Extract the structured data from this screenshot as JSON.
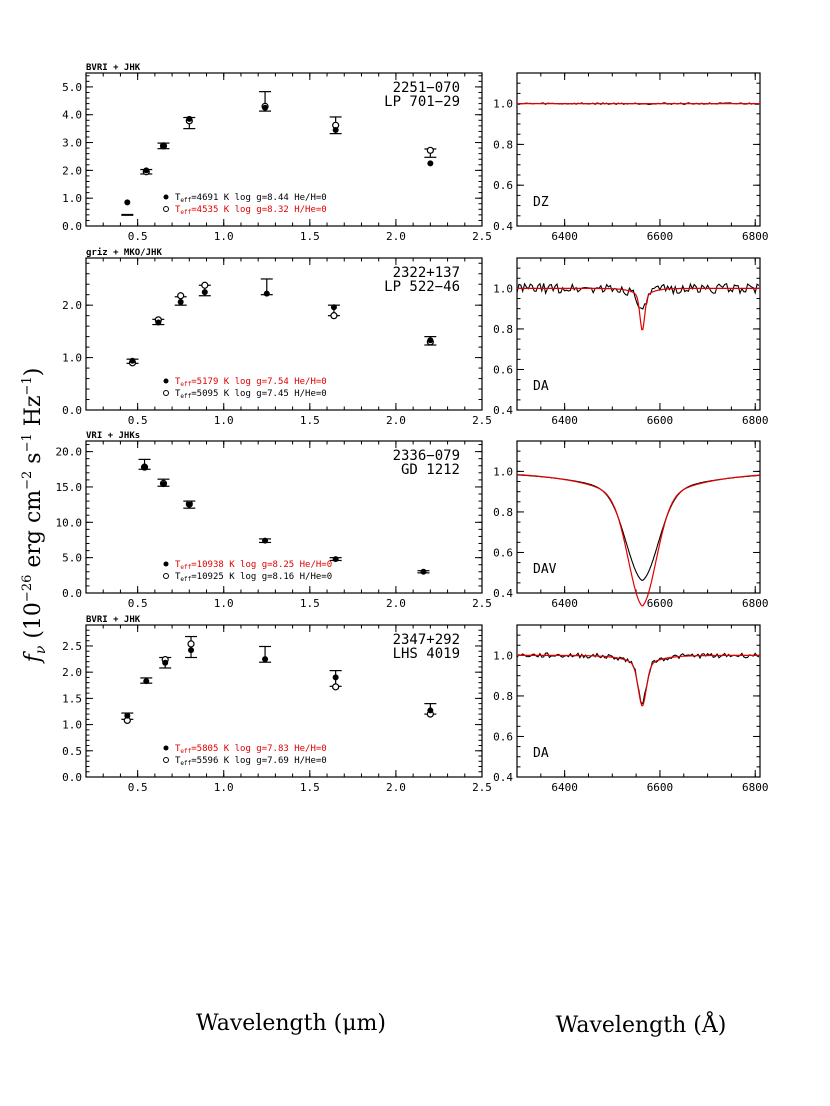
{
  "figure": {
    "ylabel_html": [
      "f",
      "ν",
      " (10",
      "−26",
      " erg cm",
      "−2",
      " s",
      "−1",
      " Hz",
      "−1",
      ")"
    ],
    "ylabel": "f_ν (10^-26 erg cm^-2 s^-1 Hz^-1)",
    "xlabel_left": "Wavelength (μm)",
    "xlabel_right": "Wavelength (Å)",
    "colors": {
      "model_black": "#000000",
      "model_red": "#e00000",
      "spectrum": "#000000"
    }
  },
  "chart_data": [
    {
      "type": "scatter",
      "panel": "sed",
      "header": "BVRI + JHK",
      "star": [
        "2251−070",
        "LP 701−29"
      ],
      "xlim": [
        0.2,
        2.5
      ],
      "ylim": [
        0,
        5.5
      ],
      "xticks": [
        0.5,
        1.0,
        1.5,
        2.0,
        2.5
      ],
      "xtick_labels": [
        "0.5",
        "1.0",
        "1.5",
        "2.0",
        "2.5"
      ],
      "yticks": [
        0,
        1,
        2,
        3,
        4,
        5
      ],
      "ytick_labels": [
        "0.0",
        "1.0",
        "2.0",
        "3.0",
        "4.0",
        "5.0"
      ],
      "observed": [
        {
          "x": 0.44,
          "y": 0.4,
          "err": 0.0
        },
        {
          "x": 0.55,
          "y": 1.95,
          "err": 0.08
        },
        {
          "x": 0.65,
          "y": 2.88,
          "err": 0.1
        },
        {
          "x": 0.8,
          "y": 3.7,
          "err": 0.2
        },
        {
          "x": 1.24,
          "y": 4.48,
          "err": 0.35
        },
        {
          "x": 1.65,
          "y": 3.62,
          "err": 0.3
        },
        {
          "x": 2.2,
          "y": 2.62,
          "err": 0.15
        }
      ],
      "model_filled": [
        {
          "x": 0.44,
          "y": 0.85
        },
        {
          "x": 0.55,
          "y": 2.0
        },
        {
          "x": 0.65,
          "y": 2.9
        },
        {
          "x": 0.8,
          "y": 3.85
        },
        {
          "x": 1.24,
          "y": 4.25
        },
        {
          "x": 1.65,
          "y": 3.45
        },
        {
          "x": 2.2,
          "y": 2.25
        }
      ],
      "model_open": [
        {
          "x": 0.55,
          "y": 1.95
        },
        {
          "x": 0.65,
          "y": 2.88
        },
        {
          "x": 0.8,
          "y": 3.78
        },
        {
          "x": 1.24,
          "y": 4.3
        },
        {
          "x": 1.65,
          "y": 3.62
        },
        {
          "x": 2.2,
          "y": 2.72
        }
      ],
      "legend": [
        {
          "marker": "filled",
          "teff_val": "=4691 K",
          "rest": "  log g=8.44   He/H=0",
          "color": "#000000"
        },
        {
          "marker": "open",
          "teff_val": "=4535 K",
          "rest": "  log g=8.32   H/He=0",
          "color": "#e00000"
        }
      ]
    },
    {
      "type": "scatter",
      "panel": "sed",
      "header": "griz + MKO/JHK",
      "star": [
        "2322+137",
        "LP 522−46"
      ],
      "xlim": [
        0.2,
        2.5
      ],
      "ylim": [
        0,
        2.9
      ],
      "xticks": [
        0.5,
        1.0,
        1.5,
        2.0,
        2.5
      ],
      "xtick_labels": [
        "0.5",
        "1.0",
        "1.5",
        "2.0",
        "2.5"
      ],
      "yticks": [
        0,
        1,
        2
      ],
      "ytick_labels": [
        "0.0",
        "1.0",
        "2.0"
      ],
      "observed": [
        {
          "x": 0.47,
          "y": 0.93,
          "err": 0.04
        },
        {
          "x": 0.62,
          "y": 1.68,
          "err": 0.05
        },
        {
          "x": 0.75,
          "y": 2.08,
          "err": 0.08
        },
        {
          "x": 0.89,
          "y": 2.28,
          "err": 0.1
        },
        {
          "x": 1.25,
          "y": 2.35,
          "err": 0.15
        },
        {
          "x": 1.64,
          "y": 1.9,
          "err": 0.1
        },
        {
          "x": 2.2,
          "y": 1.32,
          "err": 0.08
        }
      ],
      "model_filled": [
        {
          "x": 0.47,
          "y": 0.94
        },
        {
          "x": 0.62,
          "y": 1.67
        },
        {
          "x": 0.75,
          "y": 2.06
        },
        {
          "x": 0.89,
          "y": 2.25
        },
        {
          "x": 1.25,
          "y": 2.22
        },
        {
          "x": 1.64,
          "y": 1.96
        },
        {
          "x": 2.2,
          "y": 1.33
        }
      ],
      "model_open": [
        {
          "x": 0.47,
          "y": 0.9
        },
        {
          "x": 0.62,
          "y": 1.72
        },
        {
          "x": 0.75,
          "y": 2.18
        },
        {
          "x": 0.89,
          "y": 2.38
        },
        {
          "x": 1.64,
          "y": 1.8
        },
        {
          "x": 2.2,
          "y": 1.3
        }
      ],
      "legend": [
        {
          "marker": "filled",
          "teff_val": "=5179 K",
          "rest": "  log g=7.54   He/H=0",
          "color": "#e00000"
        },
        {
          "marker": "open",
          "teff_val": "=5095 K",
          "rest": "  log g=7.45   H/He=0",
          "color": "#000000"
        }
      ]
    },
    {
      "type": "scatter",
      "panel": "sed",
      "header": "VRI + JHKs",
      "star": [
        "2336−079",
        "GD 1212"
      ],
      "xlim": [
        0.2,
        2.5
      ],
      "ylim": [
        0,
        21.5
      ],
      "xticks": [
        0.5,
        1.0,
        1.5,
        2.0,
        2.5
      ],
      "xtick_labels": [
        "0.5",
        "1.0",
        "1.5",
        "2.0",
        "2.5"
      ],
      "yticks": [
        0,
        5,
        10,
        15,
        20
      ],
      "ytick_labels": [
        "0.0",
        "5.0",
        "10.0",
        "15.0",
        "20.0"
      ],
      "observed": [
        {
          "x": 0.54,
          "y": 18.2,
          "err": 0.7
        },
        {
          "x": 0.65,
          "y": 15.6,
          "err": 0.5
        },
        {
          "x": 0.8,
          "y": 12.5,
          "err": 0.5
        },
        {
          "x": 1.24,
          "y": 7.4,
          "err": 0.25
        },
        {
          "x": 1.65,
          "y": 4.8,
          "err": 0.2
        },
        {
          "x": 2.16,
          "y": 3.0,
          "err": 0.15
        }
      ],
      "model_filled": [
        {
          "x": 0.54,
          "y": 17.8
        },
        {
          "x": 0.65,
          "y": 15.4
        },
        {
          "x": 0.8,
          "y": 12.5
        },
        {
          "x": 1.24,
          "y": 7.4
        },
        {
          "x": 1.65,
          "y": 4.8
        },
        {
          "x": 2.16,
          "y": 3.0
        }
      ],
      "model_open": [
        {
          "x": 0.54,
          "y": 17.8
        },
        {
          "x": 0.65,
          "y": 15.5
        },
        {
          "x": 0.8,
          "y": 12.6
        }
      ],
      "legend": [
        {
          "marker": "filled",
          "teff_val": "=10938 K",
          "rest": "  log g=8.25   He/H=0",
          "color": "#e00000"
        },
        {
          "marker": "open",
          "teff_val": "=10925 K",
          "rest": "  log g=8.16   H/He=0",
          "color": "#000000"
        }
      ]
    },
    {
      "type": "scatter",
      "panel": "sed",
      "header": "BVRI + JHK",
      "star": [
        "2347+292",
        "LHS 4019"
      ],
      "xlim": [
        0.2,
        2.5
      ],
      "ylim": [
        0,
        2.9
      ],
      "xticks": [
        0.5,
        1.0,
        1.5,
        2.0,
        2.5
      ],
      "xtick_labels": [
        "0.5",
        "1.0",
        "1.5",
        "2.0",
        "2.5"
      ],
      "yticks": [
        0,
        0.5,
        1.0,
        1.5,
        2.0,
        2.5
      ],
      "ytick_labels": [
        "0.0",
        "0.5",
        "1.0",
        "1.5",
        "2.0",
        "2.5"
      ],
      "observed": [
        {
          "x": 0.44,
          "y": 1.16,
          "err": 0.06
        },
        {
          "x": 0.55,
          "y": 1.84,
          "err": 0.05
        },
        {
          "x": 0.66,
          "y": 2.18,
          "err": 0.1
        },
        {
          "x": 0.81,
          "y": 2.48,
          "err": 0.2
        },
        {
          "x": 1.24,
          "y": 2.34,
          "err": 0.15
        },
        {
          "x": 1.65,
          "y": 1.88,
          "err": 0.15
        },
        {
          "x": 2.2,
          "y": 1.3,
          "err": 0.1
        }
      ],
      "model_filled": [
        {
          "x": 0.44,
          "y": 1.17
        },
        {
          "x": 0.55,
          "y": 1.83
        },
        {
          "x": 0.66,
          "y": 2.18
        },
        {
          "x": 0.81,
          "y": 2.42
        },
        {
          "x": 1.24,
          "y": 2.25
        },
        {
          "x": 1.65,
          "y": 1.9
        },
        {
          "x": 2.2,
          "y": 1.27
        }
      ],
      "model_open": [
        {
          "x": 0.44,
          "y": 1.08
        },
        {
          "x": 0.66,
          "y": 2.24
        },
        {
          "x": 0.81,
          "y": 2.54
        },
        {
          "x": 1.65,
          "y": 1.72
        },
        {
          "x": 2.2,
          "y": 1.2
        }
      ],
      "legend": [
        {
          "marker": "filled",
          "teff_val": "=5805 K",
          "rest": "  log g=7.83   He/H=0",
          "color": "#e00000"
        },
        {
          "marker": "open",
          "teff_val": "=5596 K",
          "rest": "  log g=7.69   H/He=0",
          "color": "#000000"
        }
      ]
    },
    {
      "type": "line",
      "panel": "spectrum",
      "spectral_type": "DZ",
      "xlim": [
        6300,
        6810
      ],
      "ylim": [
        0.4,
        1.15
      ],
      "xticks": [
        6400,
        6600,
        6800
      ],
      "xtick_labels": [
        "6400",
        "6600",
        "6800"
      ],
      "yticks": [
        0.4,
        0.6,
        0.8,
        1.0
      ],
      "ytick_labels": [
        "0.4",
        "0.6",
        "0.8",
        "1.0"
      ],
      "observed": {
        "noise": 0.004,
        "line_depth": 0.0,
        "line_width": 20
      },
      "model": {
        "line_depth": 0.0,
        "line_width": 20,
        "color": "#e00000"
      }
    },
    {
      "type": "line",
      "panel": "spectrum",
      "spectral_type": "DA",
      "xlim": [
        6300,
        6810
      ],
      "ylim": [
        0.4,
        1.15
      ],
      "xticks": [
        6400,
        6600,
        6800
      ],
      "xtick_labels": [
        "6400",
        "6600",
        "6800"
      ],
      "yticks": [
        0.4,
        0.6,
        0.8,
        1.0
      ],
      "ytick_labels": [
        "0.4",
        "0.6",
        "0.8",
        "1.0"
      ],
      "observed": {
        "noise": 0.025,
        "line_depth": 0.09,
        "line_width": 10
      },
      "model": {
        "line_depth": 0.15,
        "line_width": 7,
        "color": "#e00000"
      }
    },
    {
      "type": "line",
      "panel": "spectrum",
      "spectral_type": "DAV",
      "xlim": [
        6300,
        6810
      ],
      "ylim": [
        0.4,
        1.15
      ],
      "xticks": [
        6400,
        6600,
        6800
      ],
      "xtick_labels": [
        "6400",
        "6600",
        "6800"
      ],
      "yticks": [
        0.4,
        0.6,
        0.8,
        1.0
      ],
      "ytick_labels": [
        "0.4",
        "0.6",
        "0.8",
        "1.0"
      ],
      "observed": {
        "noise": 0.0,
        "line_depth": 0.385,
        "line_width": 48
      },
      "model": {
        "line_depth": 0.475,
        "line_width": 42,
        "color": "#e00000"
      }
    },
    {
      "type": "line",
      "panel": "spectrum",
      "spectral_type": "DA",
      "xlim": [
        6300,
        6810
      ],
      "ylim": [
        0.4,
        1.15
      ],
      "xticks": [
        6400,
        6600,
        6800
      ],
      "xtick_labels": [
        "6400",
        "6600",
        "6800"
      ],
      "yticks": [
        0.4,
        0.6,
        0.8,
        1.0
      ],
      "ytick_labels": [
        "0.4",
        "0.6",
        "0.8",
        "1.0"
      ],
      "observed": {
        "noise": 0.012,
        "line_depth": 0.17,
        "line_width": 12
      },
      "model": {
        "line_depth": 0.18,
        "line_width": 12,
        "color": "#e00000"
      }
    }
  ]
}
